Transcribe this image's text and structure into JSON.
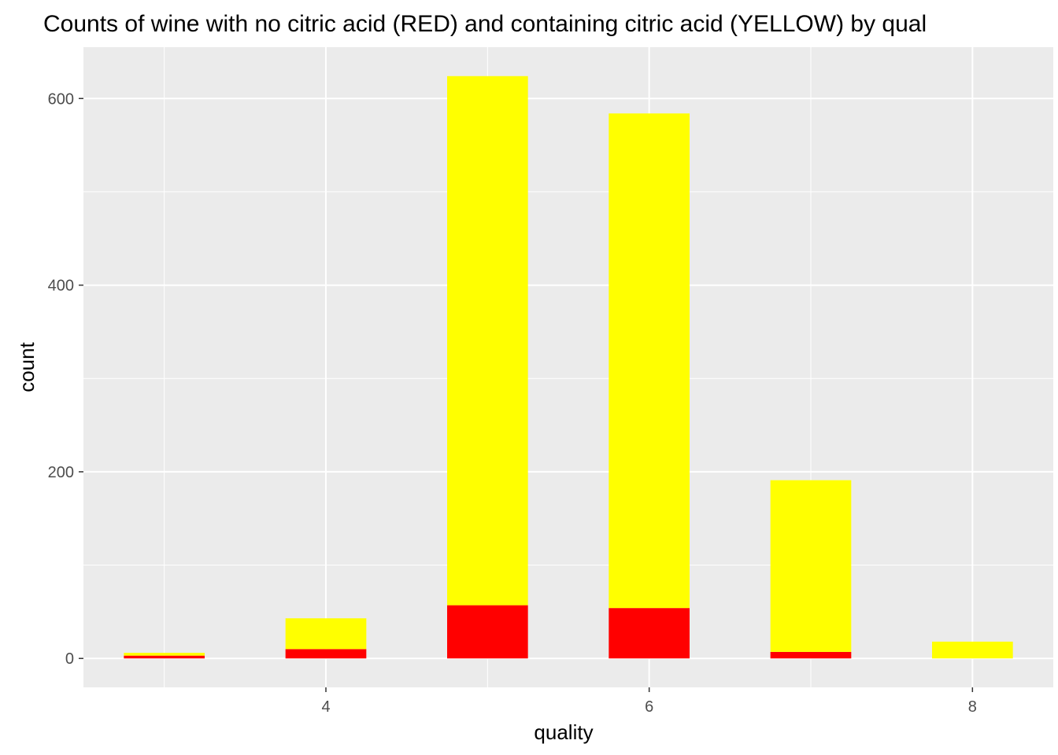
{
  "chart_data": {
    "type": "bar",
    "stacked": true,
    "title": "Counts of wine with no citric acid (RED) and containing citric acid (YELLOW) by qual",
    "xlabel": "quality",
    "ylabel": "count",
    "categories": [
      3,
      4,
      5,
      6,
      7,
      8
    ],
    "series": [
      {
        "color": "#ff0000",
        "values": [
          3,
          10,
          57,
          54,
          7,
          0
        ]
      },
      {
        "color": "#ffff00",
        "values": [
          3,
          33,
          567,
          530,
          184,
          18
        ]
      }
    ],
    "totals": [
      6,
      43,
      624,
      584,
      191,
      18
    ],
    "xlim": [
      2.5,
      8.5
    ],
    "ylim": [
      -31,
      655
    ],
    "x_ticks": [
      4,
      6,
      8
    ],
    "y_ticks": [
      0,
      200,
      400,
      600
    ],
    "grid": true,
    "panel_background": "#ebebeb",
    "grid_color": "#ffffff",
    "legend": "none"
  }
}
